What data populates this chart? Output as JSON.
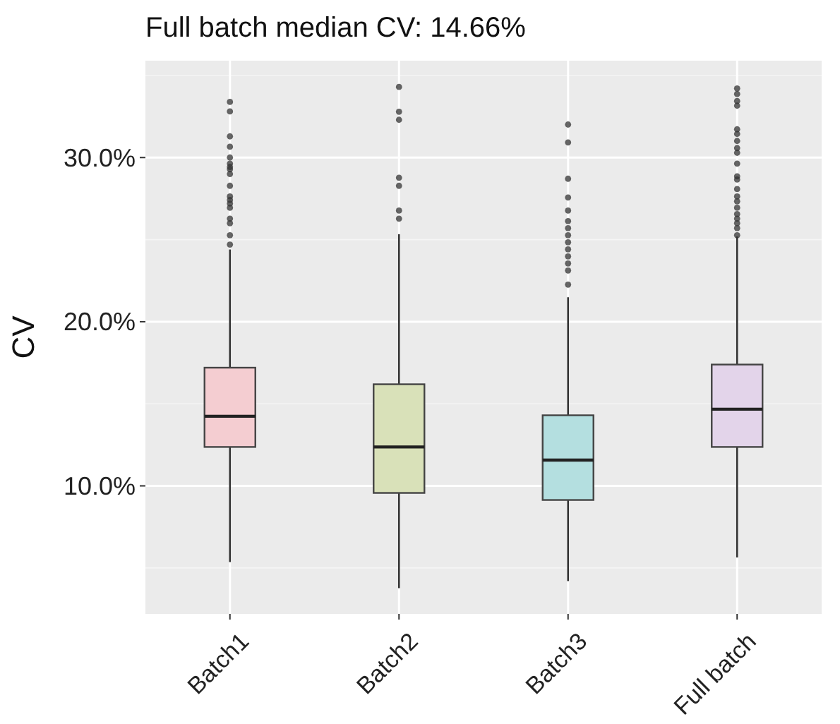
{
  "chart_data": {
    "type": "box",
    "title": "Full batch median CV: 14.66%",
    "ylabel": "CV",
    "categories": [
      "Batch1",
      "Batch2",
      "Batch3",
      "Full batch"
    ],
    "colors": [
      "#f4cdd1",
      "#d9e1b9",
      "#b4dfe0",
      "#e3d4ea"
    ],
    "boxes": [
      {
        "low": 5.36,
        "q1": 12.37,
        "median": 14.24,
        "q3": 17.2,
        "high": 24.4,
        "outliers": [
          33.39,
          32.81,
          31.29,
          30.66,
          30.0,
          29.63,
          29.43,
          29.29,
          29.0,
          28.28,
          27.63,
          27.42,
          27.2,
          26.94,
          26.28,
          26.0,
          25.27,
          24.7
        ]
      },
      {
        "low": 3.77,
        "q1": 9.57,
        "median": 12.37,
        "q3": 16.19,
        "high": 25.33,
        "outliers": [
          34.3,
          32.79,
          32.3,
          28.77,
          28.28,
          26.77,
          26.28
        ]
      },
      {
        "low": 4.2,
        "q1": 9.14,
        "median": 11.57,
        "q3": 14.3,
        "high": 21.49,
        "outliers": [
          32.01,
          30.92,
          28.71,
          27.57,
          26.77,
          26.13,
          25.7,
          25.27,
          24.84,
          24.41,
          23.98,
          23.55,
          23.12,
          22.26
        ]
      },
      {
        "low": 5.64,
        "q1": 12.37,
        "median": 14.67,
        "q3": 17.39,
        "high": 25.19,
        "outliers": [
          34.21,
          33.87,
          33.44,
          33.16,
          31.72,
          31.44,
          31.01,
          30.58,
          30.29,
          29.63,
          28.86,
          28.66,
          28.08,
          27.63,
          27.33,
          26.94,
          26.56,
          26.28,
          26.0,
          25.7,
          25.27
        ]
      }
    ],
    "ylim": [
      2.2,
      35.9
    ],
    "yticks": [
      {
        "value": 10,
        "label": "10.0%"
      },
      {
        "value": 20,
        "label": "20.0%"
      },
      {
        "value": 30,
        "label": "30.0%"
      }
    ],
    "grid": true
  }
}
